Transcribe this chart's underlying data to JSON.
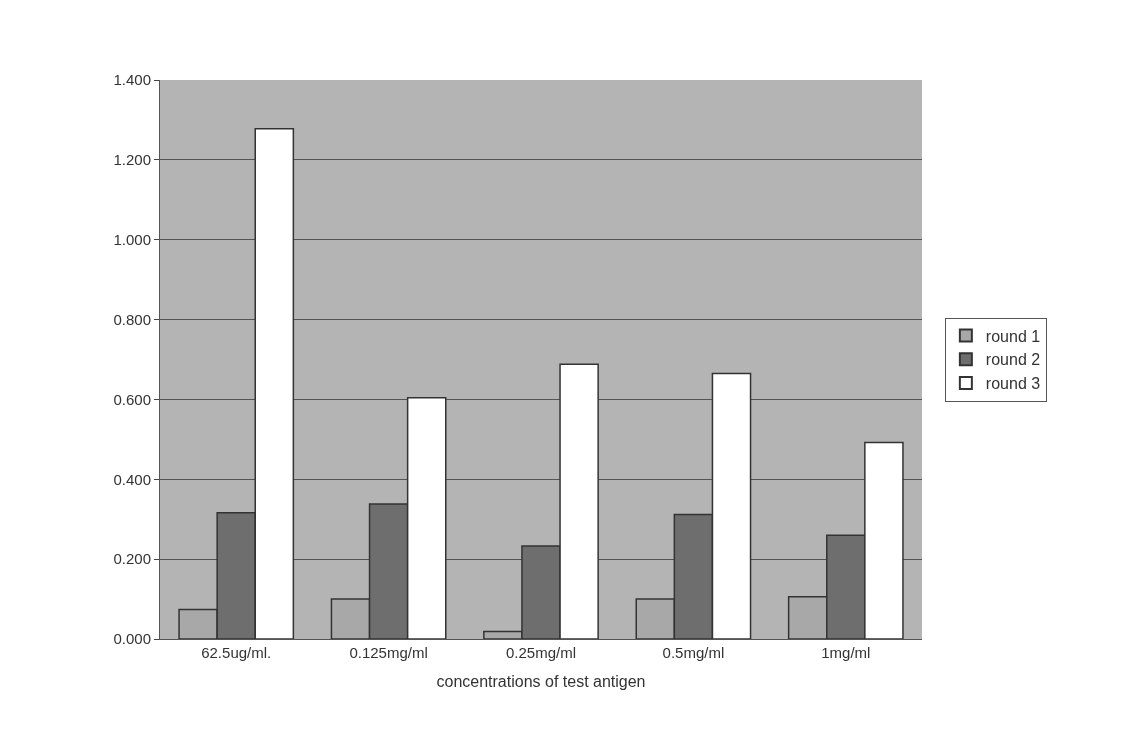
{
  "chart_data": {
    "type": "bar",
    "xlabel": "concentrations of test antigen",
    "categories": [
      "62.5ug/ml.",
      "0.125mg/ml",
      "0.25mg/ml",
      "0.5mg/ml",
      "1mg/ml"
    ],
    "series": [
      {
        "name": "round 1",
        "color": "#a8a8a8",
        "values": [
          0.074,
          0.1,
          0.019,
          0.1,
          0.106
        ]
      },
      {
        "name": "round 2",
        "color": "#6e6e6e",
        "values": [
          0.316,
          0.338,
          0.233,
          0.312,
          0.26
        ]
      },
      {
        "name": "round 3",
        "color": "#ffffff",
        "values": [
          1.278,
          0.604,
          0.688,
          0.665,
          0.492
        ]
      }
    ],
    "ylim": [
      0,
      1.4
    ],
    "yticks": [
      {
        "value": 0,
        "label": "0.000"
      },
      {
        "value": 0.2,
        "label": "0.200"
      },
      {
        "value": 0.4,
        "label": "0.400"
      },
      {
        "value": 0.6,
        "label": "0.600"
      },
      {
        "value": 0.8,
        "label": "0.800"
      },
      {
        "value": 1.0,
        "label": "1.000"
      },
      {
        "value": 1.2,
        "label": "1.200"
      },
      {
        "value": 1.4,
        "label": "1.400"
      }
    ],
    "grid": "y",
    "legend": "right"
  }
}
